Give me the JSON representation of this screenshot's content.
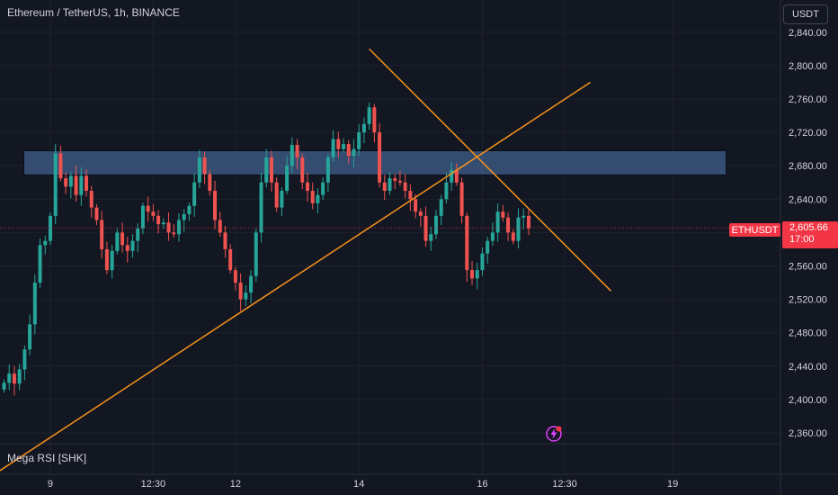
{
  "header": {
    "title": "Ethereum / TetherUS, 1h, BINANCE"
  },
  "currency_button": {
    "label": "USDT"
  },
  "indicator": {
    "label": "Mega RSI [SHK]"
  },
  "last_price": {
    "symbol": "ETHUSDT",
    "price": "2,605.66",
    "countdown": "17:00",
    "value": 2605.66
  },
  "colors": {
    "background": "#131722",
    "up": "#26a69a",
    "down": "#ef5350",
    "zone": "#4a6fa5",
    "trendline": "#f7931a",
    "price_line": "#f23645",
    "text": "#d1d4dc"
  },
  "chart_data": {
    "type": "candlestick",
    "title": "Ethereum / TetherUS, 1h, BINANCE",
    "y_ticks": [
      2360,
      2400,
      2440,
      2480,
      2520,
      2560,
      2600,
      2640,
      2680,
      2720,
      2760,
      2800,
      2840
    ],
    "y_tick_labels": [
      "2,360.00",
      "2,400.00",
      "2,440.00",
      "2,480.00",
      "2,520.00",
      "2,560.00",
      "2,600.00",
      "2,640.00",
      "2,680.00",
      "2,720.00",
      "2,760.00",
      "2,800.00",
      "2,840.00"
    ],
    "ylim": [
      2340,
      2870
    ],
    "x_tick_labels": [
      {
        "label": "9",
        "index": 9
      },
      {
        "label": "12:30",
        "index": 29
      },
      {
        "label": "12",
        "index": 45
      },
      {
        "label": "14",
        "index": 69
      },
      {
        "label": "16",
        "index": 93
      },
      {
        "label": "12:30",
        "index": 109
      },
      {
        "label": "19",
        "index": 130
      }
    ],
    "close": [
      2420,
      2431,
      2419,
      2436,
      2460,
      2490,
      2540,
      2585,
      2590,
      2620,
      2695,
      2665,
      2655,
      2668,
      2645,
      2668,
      2650,
      2630,
      2615,
      2580,
      2555,
      2578,
      2600,
      2585,
      2578,
      2590,
      2605,
      2632,
      2625,
      2620,
      2610,
      2612,
      2600,
      2598,
      2615,
      2622,
      2632,
      2660,
      2690,
      2670,
      2650,
      2615,
      2600,
      2580,
      2555,
      2540,
      2520,
      2528,
      2548,
      2600,
      2660,
      2690,
      2660,
      2630,
      2650,
      2680,
      2705,
      2690,
      2660,
      2650,
      2635,
      2645,
      2660,
      2690,
      2712,
      2700,
      2706,
      2692,
      2700,
      2720,
      2730,
      2750,
      2720,
      2660,
      2650,
      2665,
      2662,
      2660,
      2650,
      2640,
      2625,
      2620,
      2590,
      2598,
      2620,
      2640,
      2660,
      2675,
      2660,
      2620,
      2555,
      2545,
      2555,
      2575,
      2590,
      2600,
      2625,
      2618,
      2600,
      2590,
      2618,
      2620,
      2605
    ],
    "trend_line_up": {
      "start": {
        "index": -2,
        "value": 2310
      },
      "end": {
        "index": 114,
        "value": 2780
      }
    },
    "trend_line_down": {
      "start": {
        "index": 71,
        "value": 2820
      },
      "end": {
        "index": 118,
        "value": 2530
      }
    },
    "zone": {
      "start_index": 0,
      "end_index": 139,
      "top": 2698,
      "bottom": 2669
    },
    "last_price": 2605.66
  }
}
